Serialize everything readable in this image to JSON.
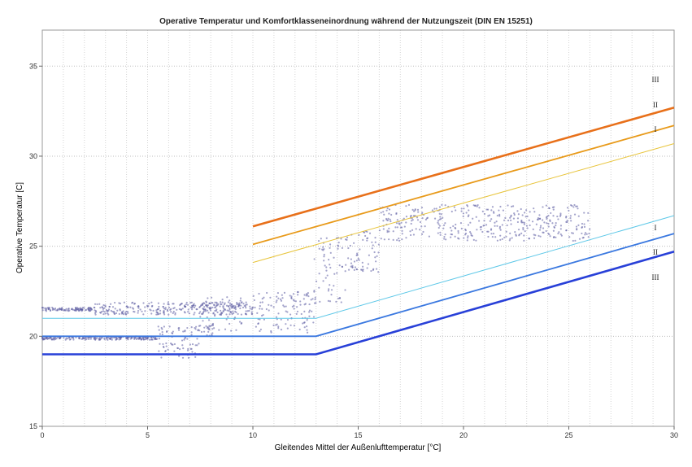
{
  "chart_data": {
    "type": "scatter",
    "title": "Operative Temperatur und Komfortklasseneinordnung während der Nutzungszeit (DIN EN 15251)",
    "xlabel": "Gleitendes Mittel der Außenlufttemperatur [°C]",
    "ylabel": "Operative Temperatur [C]",
    "xlim": [
      0,
      30
    ],
    "ylim": [
      15,
      37
    ],
    "x_ticks": [
      0,
      5,
      10,
      15,
      20,
      25,
      30
    ],
    "y_ticks": [
      15,
      20,
      25,
      30,
      35
    ],
    "grid": true,
    "colors": {
      "upper_III": "#e8701a",
      "upper_II": "#e89a1a",
      "upper_I": "#e8c43a",
      "lower_I": "#5ec8e8",
      "lower_II": "#3a78e0",
      "lower_III": "#2840d8",
      "points": "#5a5aa0"
    },
    "series": [
      {
        "name": "III",
        "x": [
          10,
          30
        ],
        "y": [
          26.1,
          32.7
        ]
      },
      {
        "name": "II",
        "x": [
          10,
          30
        ],
        "y": [
          25.1,
          31.7
        ]
      },
      {
        "name": "I",
        "x": [
          10,
          30
        ],
        "y": [
          24.1,
          30.7
        ]
      },
      {
        "name": "I",
        "x": [
          0,
          13,
          30
        ],
        "y": [
          21.0,
          21.0,
          26.7
        ]
      },
      {
        "name": "II",
        "x": [
          0,
          13,
          30
        ],
        "y": [
          20.0,
          20.0,
          25.7
        ]
      },
      {
        "name": "III",
        "x": [
          0,
          13,
          30
        ],
        "y": [
          19.0,
          19.0,
          24.7
        ]
      }
    ],
    "scatter_clusters": [
      {
        "x": [
          0,
          2.5
        ],
        "y": [
          21.4,
          21.6
        ]
      },
      {
        "x": [
          2.5,
          10
        ],
        "y": [
          21.2,
          21.9
        ]
      },
      {
        "x": [
          0,
          5.5
        ],
        "y": [
          19.8,
          20.0
        ]
      },
      {
        "x": [
          5.5,
          7.5
        ],
        "y": [
          18.8,
          20.6
        ]
      },
      {
        "x": [
          7.5,
          9.5
        ],
        "y": [
          20.0,
          22.2
        ]
      },
      {
        "x": [
          10,
          13
        ],
        "y": [
          20.2,
          22.5
        ]
      },
      {
        "x": [
          12.9,
          14.5
        ],
        "y": [
          21.8,
          25.8
        ]
      },
      {
        "x": [
          14.5,
          16
        ],
        "y": [
          23.5,
          25.9
        ]
      },
      {
        "x": [
          16,
          26
        ],
        "y": [
          25.3,
          27.3
        ]
      }
    ]
  }
}
